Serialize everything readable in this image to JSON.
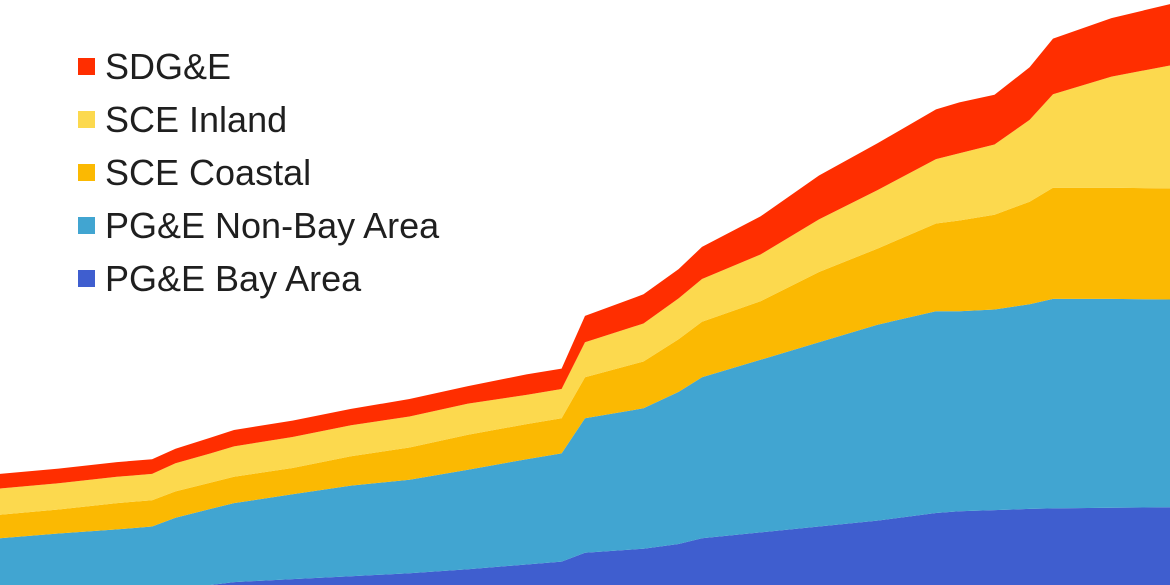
{
  "chart_data": {
    "type": "area",
    "stacked": true,
    "title": "",
    "xlabel": "",
    "ylabel": "",
    "xlim": [
      0,
      100
    ],
    "ylim": [
      0,
      100
    ],
    "grid": false,
    "legend_placement": "top-left",
    "x": [
      0,
      5,
      10,
      13,
      15,
      18,
      20,
      25,
      30,
      35,
      40,
      45,
      48,
      50,
      55,
      58,
      60,
      65,
      70,
      75,
      80,
      82,
      85,
      88,
      90,
      95,
      100
    ],
    "series": [
      {
        "name": "PG&E Bay Area",
        "color": "#3f5ecf",
        "values": [
          0,
          0,
          0,
          0,
          0,
          0,
          0.5,
          1.0,
          1.5,
          2.0,
          2.7,
          3.5,
          4.0,
          5.5,
          6.2,
          7.0,
          8.0,
          9.0,
          10.0,
          11.0,
          12.3,
          12.6,
          12.8,
          13.0,
          13.1,
          13.2,
          13.3
        ]
      },
      {
        "name": "PG&E Non-Bay Area",
        "color": "#41a5d1",
        "values": [
          8.0,
          8.8,
          9.5,
          10.0,
          11.5,
          13.0,
          13.5,
          14.5,
          15.5,
          16.0,
          17.0,
          18.0,
          18.5,
          23.0,
          24.0,
          26.0,
          27.5,
          29.5,
          31.5,
          33.5,
          34.5,
          34.2,
          34.3,
          35.0,
          35.8,
          35.7,
          35.5
        ]
      },
      {
        "name": "SCE Coastal",
        "color": "#fbb902",
        "values": [
          4.0,
          4.1,
          4.5,
          4.5,
          4.5,
          4.5,
          4.5,
          4.5,
          5.0,
          5.5,
          6.0,
          6.0,
          6.0,
          7.0,
          8.0,
          9.0,
          9.5,
          10.0,
          12.0,
          13.0,
          15.0,
          15.5,
          16.2,
          17.5,
          19.0,
          19.0,
          19.0
        ]
      },
      {
        "name": "SCE Inland",
        "color": "#fcd94e",
        "values": [
          4.5,
          4.5,
          4.5,
          4.5,
          4.8,
          5.0,
          5.2,
          5.3,
          5.3,
          5.3,
          5.3,
          5.0,
          5.0,
          6.0,
          6.5,
          7.0,
          7.3,
          8.0,
          9.0,
          10.0,
          11.0,
          11.5,
          12.0,
          14.0,
          16.0,
          19.0,
          21.0
        ]
      },
      {
        "name": "SDG&E",
        "color": "#ff2e00",
        "values": [
          2.5,
          2.5,
          2.5,
          2.5,
          2.5,
          2.7,
          2.8,
          2.8,
          2.8,
          3.0,
          3.0,
          3.5,
          3.5,
          4.5,
          5.0,
          5.0,
          5.5,
          6.5,
          7.5,
          8.0,
          8.5,
          8.7,
          8.5,
          9.0,
          9.5,
          10.0,
          10.5
        ]
      }
    ]
  }
}
